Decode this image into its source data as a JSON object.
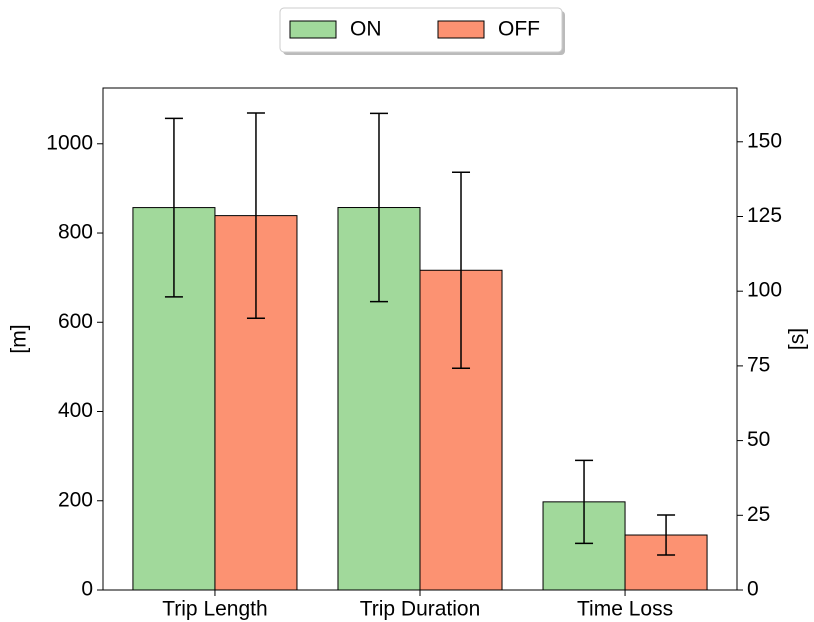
{
  "chart_data": {
    "type": "bar",
    "categories": [
      "Trip Length",
      "Trip Duration",
      "Time Loss"
    ],
    "category_axes": [
      "y",
      "y2",
      "y2"
    ],
    "series": [
      {
        "name": "ON",
        "color": "#a1d99b",
        "values": [
          857,
          128,
          29.5
        ],
        "errors": [
          200,
          31.5,
          13.9
        ]
      },
      {
        "name": "OFF",
        "color": "#fc9272",
        "values": [
          839,
          107,
          18.4
        ],
        "errors": [
          230,
          32.8,
          6.7
        ]
      }
    ],
    "ylabel": "[m]",
    "y2label": "[s]",
    "ylim": [
      0,
      1125
    ],
    "yticks": [
      0,
      200,
      400,
      600,
      800,
      1000
    ],
    "y2lim": [
      0,
      168
    ],
    "y2ticks": [
      0,
      25,
      50,
      75,
      100,
      125,
      150
    ],
    "legend": "top"
  }
}
